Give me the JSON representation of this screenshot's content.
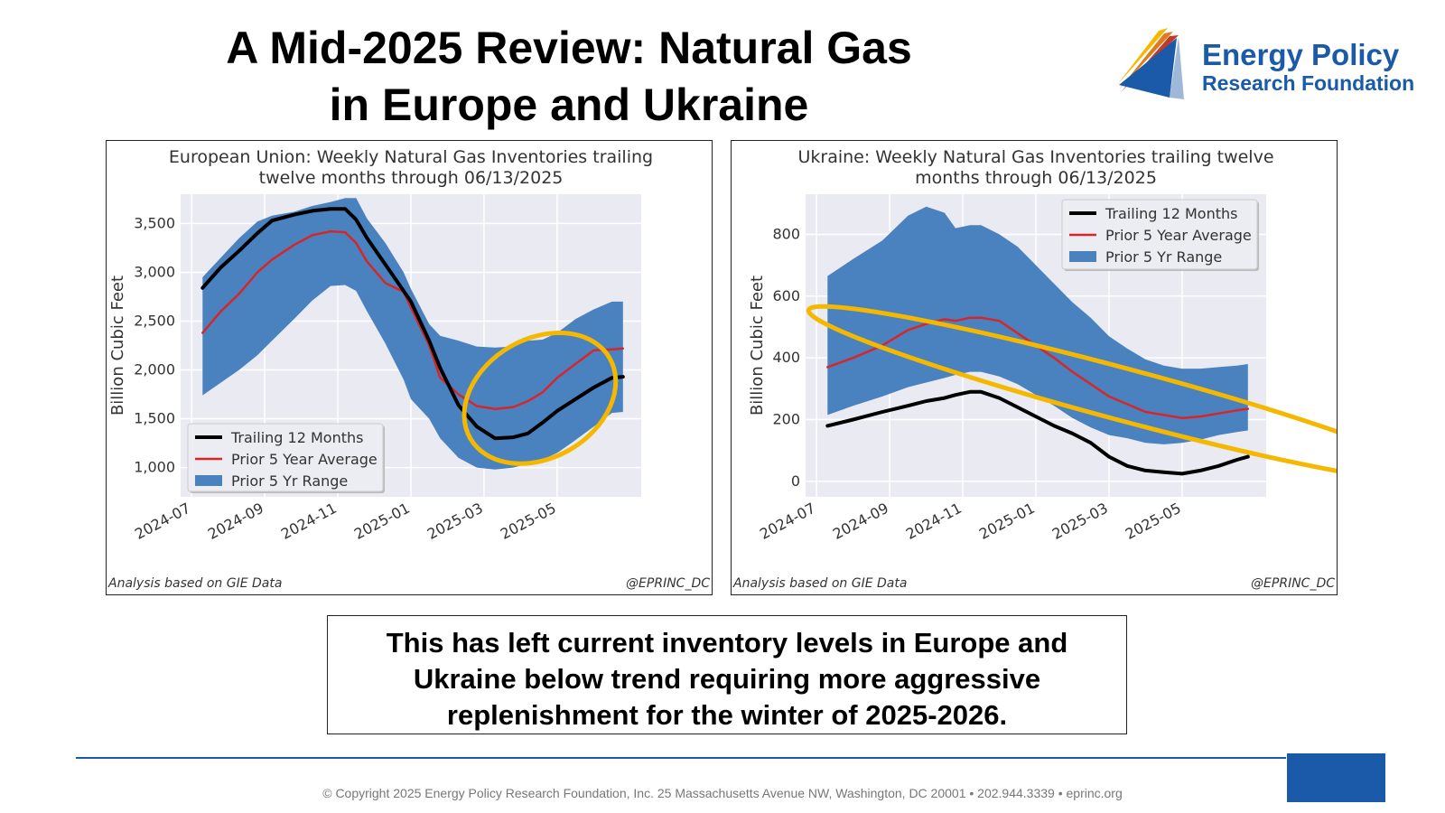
{
  "page": {
    "title_line1": "A Mid-2025 Review: Natural Gas",
    "title_line2": "in Europe and Ukraine",
    "logo_line1": "Energy Policy",
    "logo_line2": "Research Foundation",
    "caption_line1": "This has left current inventory levels in Europe and",
    "caption_line2": "Ukraine below trend requiring more aggressive",
    "caption_line3": "replenishment for the winter of 2025-2026.",
    "footer": "© Copyright 2025 Energy Policy Research Foundation, Inc. 25 Massachusetts Avenue NW, Washington, DC 20001 • 202.944.3339 • eprinc.org",
    "colors": {
      "brand": "#1a5aa8",
      "band": "#4a81bf",
      "avg": "#d62728",
      "trailing": "#000000",
      "highlight": "#f5b800",
      "plot_bg": "#eaeaf2"
    }
  },
  "chart_data": [
    {
      "type": "line",
      "title_line1": "European Union: Weekly Natural Gas Inventories trailing",
      "title_line2": "twelve months through 06/13/2025",
      "xlabel": "",
      "ylabel": "Billion Cubic Feet",
      "source_left": "Analysis based on GIE Data",
      "source_right": "@EPRINC_DC",
      "x_ticks": [
        "2024-07",
        "2024-09",
        "2024-11",
        "2025-01",
        "2025-03",
        "2025-05"
      ],
      "y_ticks": [
        1000,
        1500,
        2000,
        2500,
        3000,
        3500
      ],
      "y_tick_labels": [
        "1,000",
        "1,500",
        "2,000",
        "2,500",
        "3,000",
        "3,500"
      ],
      "xlim": [
        -0.3,
        12.3
      ],
      "ylim": [
        700,
        3800
      ],
      "legend": {
        "placement": "lower-left",
        "entries": [
          "Trailing 12 Months",
          "Prior 5 Year Average",
          "Prior 5 Yr Range"
        ]
      },
      "highlight_ellipse": {
        "cx": 9.53,
        "cy": 1710,
        "rx": 2.2,
        "ry": 610,
        "rotate_deg": -30
      },
      "x": [
        0.3,
        0.8,
        1.3,
        1.8,
        2.2,
        2.8,
        3.3,
        3.8,
        4.2,
        4.5,
        4.8,
        5.3,
        5.8,
        6.0,
        6.5,
        6.8,
        7.3,
        7.8,
        8.3,
        8.8,
        9.2,
        9.6,
        10.0,
        10.5,
        11.0,
        11.5,
        11.8
      ],
      "series": [
        {
          "name": "Trailing 12 Months",
          "role": "line",
          "values": [
            2840,
            3050,
            3220,
            3400,
            3530,
            3590,
            3630,
            3650,
            3650,
            3540,
            3350,
            3080,
            2810,
            2700,
            2300,
            2020,
            1640,
            1420,
            1300,
            1310,
            1350,
            1460,
            1580,
            1700,
            1820,
            1920,
            1930
          ]
        },
        {
          "name": "Prior 5 Year Average",
          "role": "line",
          "values": [
            2380,
            2600,
            2780,
            3000,
            3130,
            3280,
            3380,
            3420,
            3410,
            3300,
            3110,
            2890,
            2800,
            2640,
            2250,
            1920,
            1750,
            1630,
            1600,
            1620,
            1680,
            1770,
            1920,
            2060,
            2200,
            2210,
            2220
          ]
        },
        {
          "name": "Prior 5 Yr Range",
          "role": "band",
          "upper": [
            2950,
            3150,
            3350,
            3520,
            3580,
            3620,
            3680,
            3720,
            3760,
            3760,
            3550,
            3300,
            3000,
            2830,
            2470,
            2350,
            2300,
            2240,
            2230,
            2240,
            2300,
            2310,
            2380,
            2520,
            2620,
            2700,
            2700
          ],
          "lower": [
            1740,
            1870,
            2000,
            2150,
            2300,
            2520,
            2710,
            2860,
            2870,
            2810,
            2600,
            2270,
            1900,
            1700,
            1500,
            1300,
            1100,
            1000,
            980,
            1000,
            1040,
            1080,
            1150,
            1280,
            1420,
            1560,
            1570
          ]
        }
      ]
    },
    {
      "type": "line",
      "title_line1": "Ukraine: Weekly Natural Gas Inventories trailing twelve",
      "title_line2": "months through 06/13/2025",
      "xlabel": "",
      "ylabel": "Billion Cubic Feet",
      "source_left": "Analysis based on GIE Data",
      "source_right": "@EPRINC_DC",
      "x_ticks": [
        "2024-07",
        "2024-09",
        "2024-11",
        "2025-01",
        "2025-03",
        "2025-05"
      ],
      "y_ticks": [
        0,
        200,
        400,
        600,
        800
      ],
      "y_tick_labels": [
        "0",
        "200",
        "400",
        "600",
        "800"
      ],
      "xlim": [
        -0.3,
        12.3
      ],
      "ylim": [
        -50,
        930
      ],
      "legend": {
        "placement": "upper-right",
        "entries": [
          "Trailing 12 Months",
          "Prior 5 Year Average",
          "Prior 5 Yr Range"
        ]
      },
      "highlight_ellipse": {
        "cx": 8.38,
        "cy": 282,
        "rx": 8.9,
        "ry": 84,
        "rotate_deg": 15
      },
      "x": [
        0.3,
        1.0,
        1.8,
        2.5,
        3.0,
        3.5,
        3.8,
        4.2,
        4.5,
        5.0,
        5.5,
        6.0,
        6.5,
        7.0,
        7.5,
        8.0,
        8.5,
        9.0,
        9.5,
        10.0,
        10.5,
        11.0,
        11.5,
        11.8
      ],
      "series": [
        {
          "name": "Trailing 12 Months",
          "role": "line",
          "values": [
            180,
            200,
            225,
            245,
            260,
            270,
            280,
            290,
            290,
            270,
            240,
            210,
            180,
            155,
            125,
            80,
            50,
            35,
            30,
            25,
            35,
            50,
            70,
            80
          ]
        },
        {
          "name": "Prior 5 Year Average",
          "role": "line",
          "values": [
            370,
            400,
            440,
            490,
            510,
            525,
            520,
            530,
            530,
            520,
            480,
            440,
            400,
            355,
            315,
            275,
            250,
            225,
            215,
            205,
            210,
            220,
            230,
            235
          ]
        },
        {
          "name": "Prior 5 Yr Range",
          "role": "band",
          "upper": [
            665,
            720,
            780,
            860,
            890,
            870,
            820,
            830,
            830,
            800,
            760,
            700,
            640,
            580,
            530,
            470,
            430,
            395,
            375,
            365,
            365,
            370,
            375,
            380
          ]
        },
        {
          "name": "Prior 5 Yr Range lower",
          "role": "band-lower",
          "lower": [
            215,
            245,
            275,
            305,
            320,
            335,
            345,
            355,
            355,
            340,
            315,
            280,
            245,
            205,
            175,
            150,
            140,
            125,
            120,
            125,
            135,
            150,
            160,
            165
          ]
        }
      ]
    }
  ]
}
